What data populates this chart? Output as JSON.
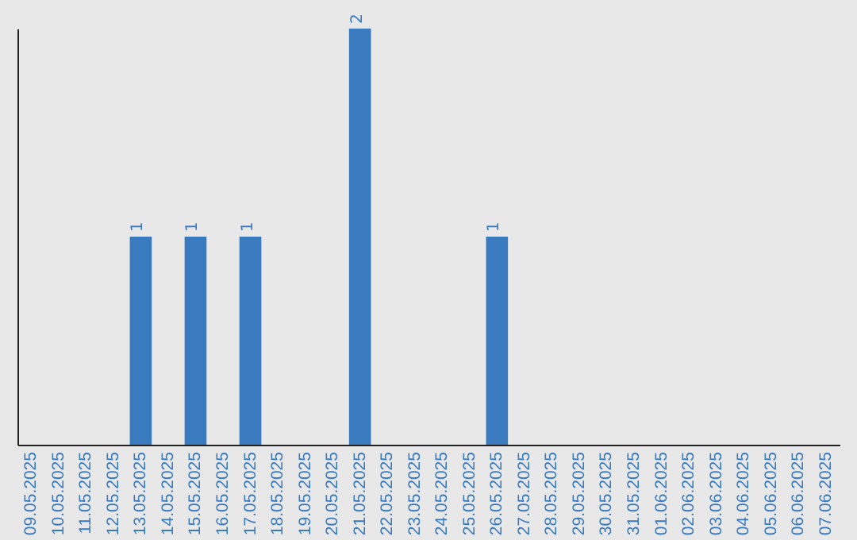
{
  "chart_data": {
    "type": "bar",
    "categories": [
      "09.05.2025",
      "10.05.2025",
      "11.05.2025",
      "12.05.2025",
      "13.05.2025",
      "14.05.2025",
      "15.05.2025",
      "16.05.2025",
      "17.05.2025",
      "18.05.2025",
      "19.05.2025",
      "20.05.2025",
      "21.05.2025",
      "22.05.2025",
      "23.05.2025",
      "24.05.2025",
      "25.05.2025",
      "26.05.2025",
      "27.05.2025",
      "28.05.2025",
      "29.05.2025",
      "30.05.2025",
      "31.05.2025",
      "01.06.2025",
      "02.06.2025",
      "03.06.2025",
      "04.06.2025",
      "05.06.2025",
      "06.06.2025",
      "07.06.2025"
    ],
    "values": [
      0,
      0,
      0,
      0,
      1,
      0,
      1,
      0,
      1,
      0,
      0,
      0,
      2,
      0,
      0,
      0,
      0,
      1,
      0,
      0,
      0,
      0,
      0,
      0,
      0,
      0,
      0,
      0,
      0,
      0
    ],
    "value_labels": [
      null,
      null,
      null,
      null,
      "1",
      null,
      "1",
      null,
      "1",
      null,
      null,
      null,
      "2",
      null,
      null,
      null,
      null,
      "1",
      null,
      null,
      null,
      null,
      null,
      null,
      null,
      null,
      null,
      null,
      null,
      null
    ],
    "color": "#3a7bbf",
    "grid": false
  }
}
